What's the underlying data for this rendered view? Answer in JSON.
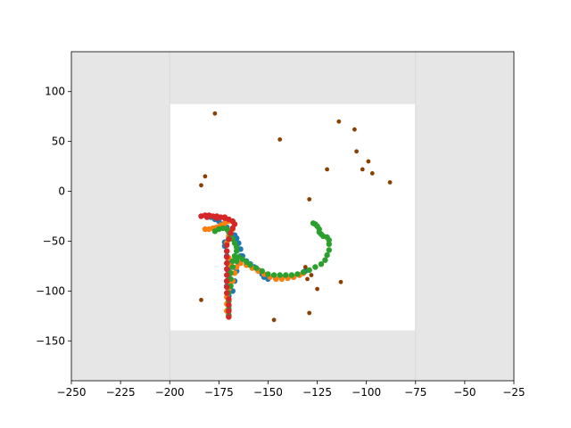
{
  "chart_data": {
    "type": "scatter",
    "title": "",
    "xlabel": "",
    "ylabel": "",
    "xlim": [
      -250,
      -25
    ],
    "ylim": [
      -190,
      140
    ],
    "xticks": [
      -250,
      -225,
      -200,
      -175,
      -150,
      -125,
      -100,
      -75,
      -50,
      -25
    ],
    "yticks": [
      -150,
      -100,
      -50,
      0,
      50,
      100
    ],
    "outer_region_color": "#e6e6e6",
    "inner_region": {
      "x": [
        -200,
        -75
      ],
      "y": [
        -140,
        88
      ],
      "color": "#ffffff"
    },
    "grid": false,
    "legend": "none",
    "series": [
      {
        "color": "#1f77b4",
        "point_size": "large",
        "points": [
          [
            -181,
            -25
          ],
          [
            -179,
            -26
          ],
          [
            -177,
            -28
          ],
          [
            -175,
            -30
          ],
          [
            -173,
            -33
          ],
          [
            -171,
            -36
          ],
          [
            -170,
            -40
          ],
          [
            -169,
            -44
          ],
          [
            -170,
            -48
          ],
          [
            -172,
            -51
          ],
          [
            -172,
            -55
          ],
          [
            -171,
            -60
          ],
          [
            -171,
            -65
          ],
          [
            -170,
            -70
          ],
          [
            -170,
            -75
          ],
          [
            -170,
            -80
          ],
          [
            -170,
            -85
          ],
          [
            -171,
            -90
          ],
          [
            -171,
            -95
          ],
          [
            -170,
            -100
          ],
          [
            -170,
            -105
          ],
          [
            -170,
            -110
          ],
          [
            -170,
            -115
          ],
          [
            -170,
            -120
          ],
          [
            -170,
            -125
          ],
          [
            -168,
            -100
          ],
          [
            -167,
            -90
          ],
          [
            -166,
            -80
          ],
          [
            -165,
            -72
          ],
          [
            -164,
            -65
          ],
          [
            -164,
            -58
          ],
          [
            -165,
            -52
          ],
          [
            -166,
            -47
          ],
          [
            -167,
            -44
          ],
          [
            -163,
            -65
          ],
          [
            -161,
            -70
          ],
          [
            -159,
            -73
          ],
          [
            -157,
            -76
          ],
          [
            -155,
            -79
          ],
          [
            -153,
            -83
          ],
          [
            -152,
            -86
          ],
          [
            -150,
            -88
          ],
          [
            -146,
            -88
          ],
          [
            -143,
            -87
          ],
          [
            -140,
            -87
          ],
          [
            -137,
            -86
          ],
          [
            -134,
            -84
          ],
          [
            -132,
            -82
          ],
          [
            -131,
            -80
          ]
        ]
      },
      {
        "color": "#ff7f0e",
        "point_size": "large",
        "points": [
          [
            -182,
            -38
          ],
          [
            -180,
            -38
          ],
          [
            -178,
            -37
          ],
          [
            -176,
            -36
          ],
          [
            -174,
            -34
          ],
          [
            -172,
            -32
          ],
          [
            -170,
            -30
          ],
          [
            -168,
            -30
          ],
          [
            -167,
            -33
          ],
          [
            -168,
            -38
          ],
          [
            -170,
            -45
          ],
          [
            -171,
            -52
          ],
          [
            -171,
            -60
          ],
          [
            -170,
            -67
          ],
          [
            -169,
            -74
          ],
          [
            -169,
            -82
          ],
          [
            -170,
            -90
          ],
          [
            -170,
            -98
          ],
          [
            -171,
            -106
          ],
          [
            -171,
            -113
          ],
          [
            -171,
            -120
          ],
          [
            -170,
            -126
          ],
          [
            -168,
            -90
          ],
          [
            -167,
            -82
          ],
          [
            -166,
            -76
          ],
          [
            -164,
            -72
          ],
          [
            -161,
            -74
          ],
          [
            -158,
            -77
          ],
          [
            -155,
            -80
          ],
          [
            -152,
            -83
          ],
          [
            -149,
            -86
          ],
          [
            -146,
            -88
          ],
          [
            -143,
            -88
          ],
          [
            -140,
            -87
          ],
          [
            -137,
            -86
          ],
          [
            -134,
            -84
          ],
          [
            -132,
            -82
          ]
        ]
      },
      {
        "color": "#2ca02c",
        "point_size": "large",
        "points": [
          [
            -177,
            -40
          ],
          [
            -175,
            -38
          ],
          [
            -173,
            -37
          ],
          [
            -171,
            -38
          ],
          [
            -170,
            -41
          ],
          [
            -169,
            -44
          ],
          [
            -168,
            -48
          ],
          [
            -167,
            -52
          ],
          [
            -166,
            -56
          ],
          [
            -166,
            -60
          ],
          [
            -167,
            -65
          ],
          [
            -168,
            -70
          ],
          [
            -168,
            -76
          ],
          [
            -169,
            -82
          ],
          [
            -169,
            -88
          ],
          [
            -169,
            -95
          ],
          [
            -170,
            -102
          ],
          [
            -170,
            -110
          ],
          [
            -170,
            -118
          ],
          [
            -170,
            -124
          ],
          [
            -166,
            -70
          ],
          [
            -165,
            -66
          ],
          [
            -163,
            -68
          ],
          [
            -161,
            -71
          ],
          [
            -159,
            -74
          ],
          [
            -156,
            -77
          ],
          [
            -153,
            -80
          ],
          [
            -150,
            -83
          ],
          [
            -147,
            -84
          ],
          [
            -144,
            -84
          ],
          [
            -141,
            -84
          ],
          [
            -138,
            -84
          ],
          [
            -135,
            -83
          ],
          [
            -132,
            -81
          ],
          [
            -129,
            -79
          ],
          [
            -126,
            -76
          ],
          [
            -123,
            -73
          ],
          [
            -121,
            -69
          ],
          [
            -120,
            -64
          ],
          [
            -119,
            -59
          ],
          [
            -119,
            -53
          ],
          [
            -119,
            -49
          ],
          [
            -120,
            -46
          ],
          [
            -122,
            -45
          ],
          [
            -123,
            -43
          ],
          [
            -124,
            -41
          ],
          [
            -124,
            -38
          ],
          [
            -125,
            -35
          ],
          [
            -126,
            -33
          ],
          [
            -127,
            -32
          ]
        ]
      },
      {
        "color": "#d62728",
        "point_size": "large",
        "points": [
          [
            -184,
            -25
          ],
          [
            -182,
            -24
          ],
          [
            -180,
            -24
          ],
          [
            -178,
            -25
          ],
          [
            -176,
            -25
          ],
          [
            -174,
            -26
          ],
          [
            -172,
            -27
          ],
          [
            -170,
            -28
          ],
          [
            -168,
            -30
          ],
          [
            -167,
            -33
          ],
          [
            -168,
            -37
          ],
          [
            -169,
            -42
          ],
          [
            -170,
            -48
          ],
          [
            -171,
            -54
          ],
          [
            -171,
            -60
          ],
          [
            -171,
            -66
          ],
          [
            -171,
            -72
          ],
          [
            -171,
            -78
          ],
          [
            -171,
            -84
          ],
          [
            -171,
            -90
          ],
          [
            -171,
            -96
          ],
          [
            -171,
            -102
          ],
          [
            -170,
            -108
          ],
          [
            -170,
            -114
          ],
          [
            -170,
            -120
          ],
          [
            -170,
            -126
          ],
          [
            -172,
            -26
          ],
          [
            -176,
            -27
          ],
          [
            -181,
            -26
          ]
        ]
      },
      {
        "color": "#8b4000",
        "point_size": "small",
        "points": [
          [
            -177,
            78
          ],
          [
            -114,
            70
          ],
          [
            -106,
            62
          ],
          [
            -144,
            52
          ],
          [
            -105,
            40
          ],
          [
            -99,
            30
          ],
          [
            -120,
            22
          ],
          [
            -102,
            22
          ],
          [
            -97,
            18
          ],
          [
            -182,
            15
          ],
          [
            -88,
            9
          ],
          [
            -184,
            6
          ],
          [
            -129,
            -8
          ],
          [
            -131,
            -76
          ],
          [
            -128,
            -84
          ],
          [
            -130,
            -88
          ],
          [
            -125,
            -98
          ],
          [
            -113,
            -91
          ],
          [
            -184,
            -109
          ],
          [
            -129,
            -122
          ],
          [
            -147,
            -129
          ]
        ]
      }
    ]
  }
}
